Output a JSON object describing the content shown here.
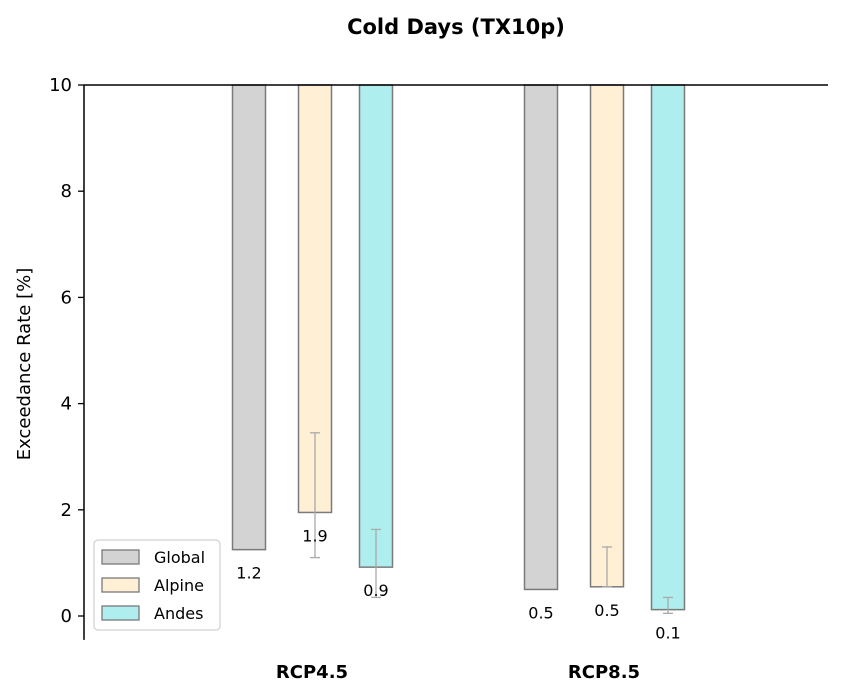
{
  "chart_data": {
    "type": "bar",
    "title": "Cold Days (TX10p)",
    "xlabel": "",
    "ylabel": "Exceedance Rate [%]",
    "categories": [
      "RCP4.5",
      "RCP8.5"
    ],
    "baseline": 10,
    "ylim": [
      -0.45,
      10
    ],
    "yticks": [
      "0",
      "2",
      "4",
      "6",
      "8",
      "10"
    ],
    "series": [
      {
        "name": "Global",
        "color": "#d3d3d3",
        "values": [
          1.25,
          0.5
        ],
        "labels": [
          "1.2",
          "0.5"
        ],
        "err_low": [
          null,
          null
        ],
        "err_high": [
          null,
          null
        ]
      },
      {
        "name": "Alpine",
        "color": "#ffefd5",
        "values": [
          1.95,
          0.55
        ],
        "labels": [
          "1.9",
          "0.5"
        ],
        "err_low": [
          1.1,
          null
        ],
        "err_high": [
          3.45,
          1.3
        ]
      },
      {
        "name": "Andes",
        "color": "#afeeee",
        "values": [
          0.92,
          0.12
        ],
        "labels": [
          "0.9",
          "0.1"
        ],
        "err_low": [
          0.35,
          0.05
        ],
        "err_high": [
          1.63,
          0.35
        ]
      }
    ],
    "legend_position": "lower-left",
    "grid": false
  }
}
